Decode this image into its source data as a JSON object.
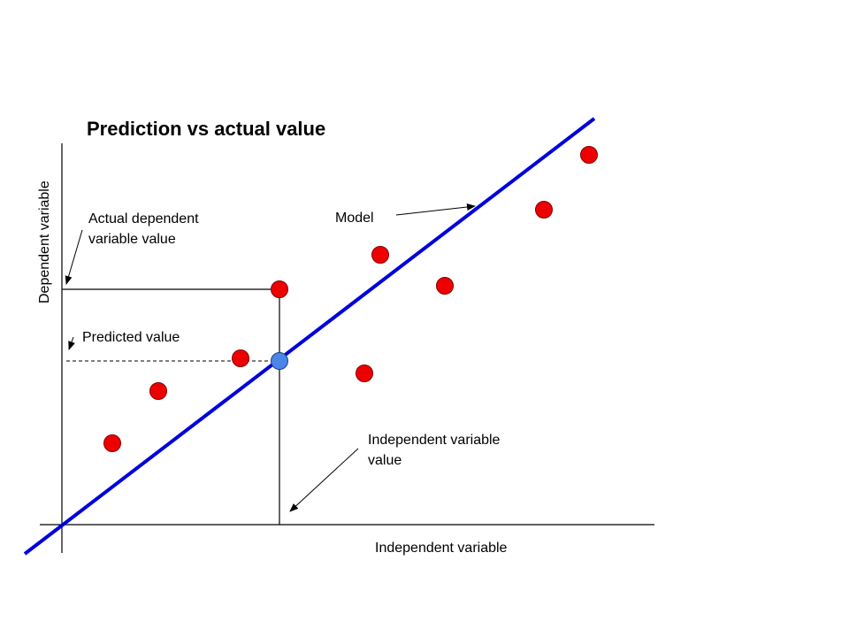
{
  "title": "Prediction vs actual value",
  "axes": {
    "x_label": "Independent variable",
    "y_label": "Dependent variable"
  },
  "annotations": {
    "model": "Model",
    "actual_line1": "Actual dependent",
    "actual_line2": "variable value",
    "predicted": "Predicted value",
    "independent_line1": "Independent variable",
    "independent_line2": "value"
  },
  "colors": {
    "model_line": "#0000dd",
    "data_point": "#ee0000",
    "predicted_point": "#4a86e8",
    "axis": "#000000"
  }
}
